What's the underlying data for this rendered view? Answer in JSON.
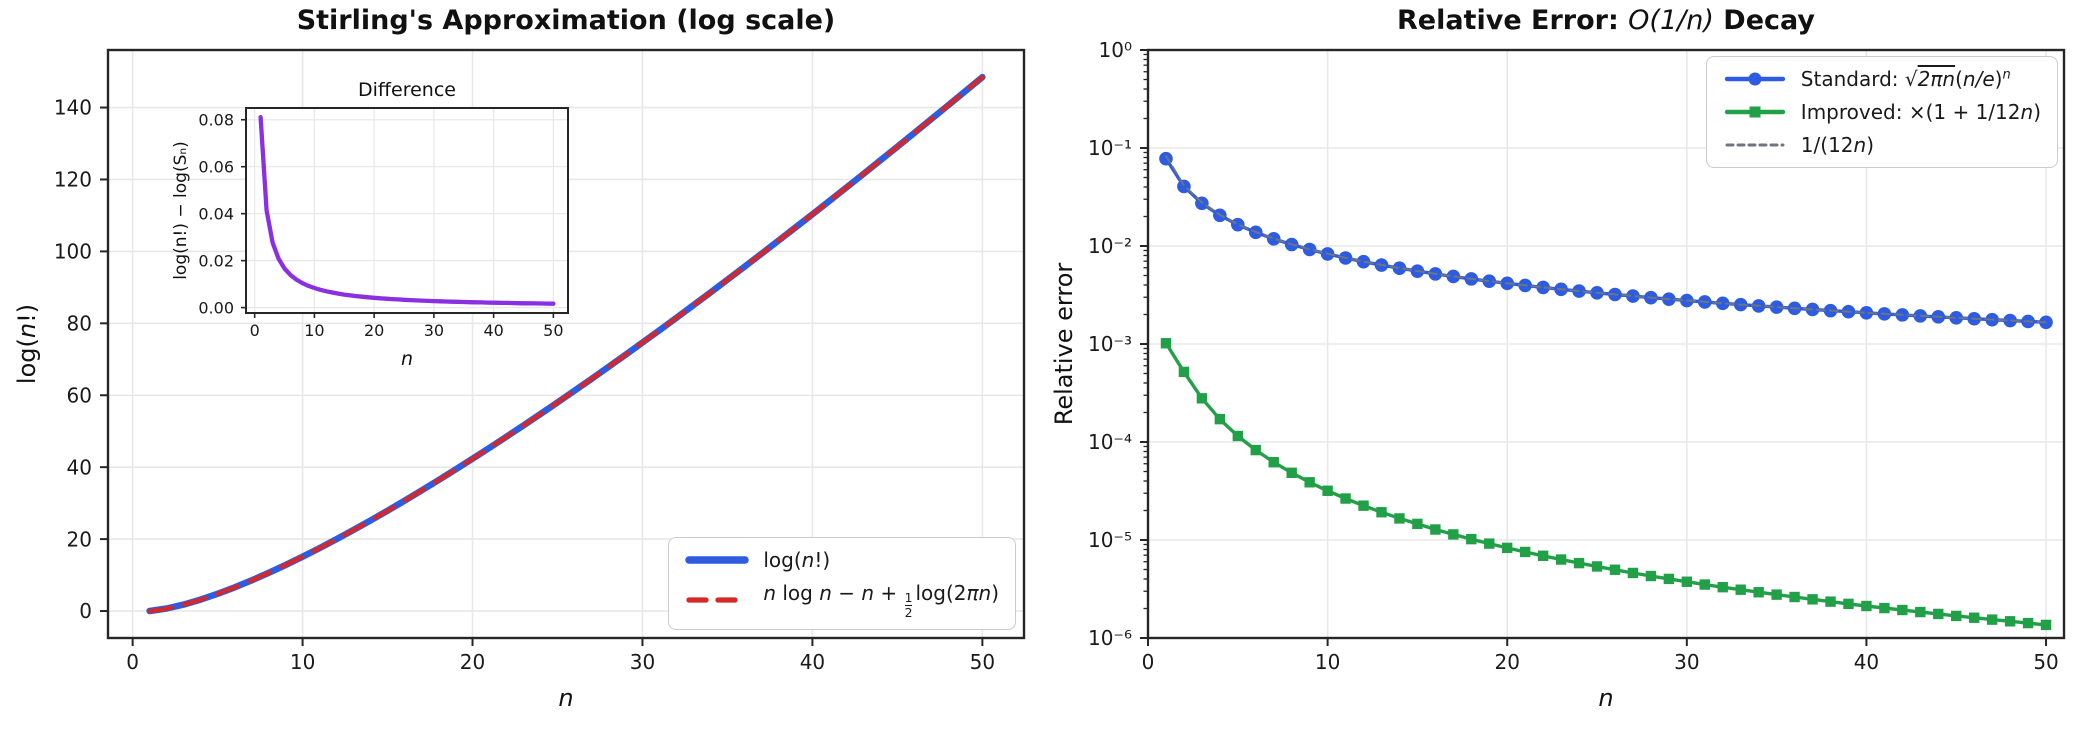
{
  "chart_data": [
    {
      "type": "line",
      "title": "Stirling's Approximation (log scale)",
      "title_parts": [
        {
          "t": "Stirling's Approximation (log scale)"
        }
      ],
      "xlabel": "n",
      "xlabel_parts": [
        {
          "t": "n",
          "i": 1
        }
      ],
      "ylabel": "log(n!)",
      "ylabel_parts": [
        {
          "t": "log("
        },
        {
          "t": "n",
          "i": 1
        },
        {
          "t": "!)"
        }
      ],
      "xlim": [
        -1.45,
        52.45
      ],
      "ylim": [
        -7.5,
        156
      ],
      "grid": true,
      "legend_position": "lower right",
      "xticks": {
        "vals": [
          0,
          10,
          20,
          30,
          40,
          50
        ],
        "labels": [
          "0",
          "10",
          "20",
          "30",
          "40",
          "50"
        ]
      },
      "yticks": {
        "vals": [
          0,
          20,
          40,
          60,
          80,
          100,
          120,
          140
        ],
        "labels": [
          "0",
          "20",
          "40",
          "60",
          "80",
          "100",
          "120",
          "140"
        ]
      },
      "x": [
        1,
        2,
        3,
        4,
        5,
        6,
        7,
        8,
        9,
        10,
        11,
        12,
        13,
        14,
        15,
        16,
        17,
        18,
        19,
        20,
        21,
        22,
        23,
        24,
        25,
        26,
        27,
        28,
        29,
        30,
        31,
        32,
        33,
        34,
        35,
        36,
        37,
        38,
        39,
        40,
        41,
        42,
        43,
        44,
        45,
        46,
        47,
        48,
        49,
        50
      ],
      "series": [
        {
          "label": "log(n!)",
          "label_parts": [
            {
              "t": "log("
            },
            {
              "t": "n",
              "i": 1
            },
            {
              "t": "!)"
            }
          ],
          "color": "#2d5ce0",
          "width": 6.5,
          "style": "solid",
          "y": [
            0.0,
            0.6931,
            1.7918,
            3.1781,
            4.7875,
            6.5793,
            8.5252,
            10.6046,
            12.8018,
            15.1044,
            17.5023,
            19.9872,
            22.5522,
            25.1912,
            27.8993,
            30.6719,
            33.5051,
            36.3954,
            39.3399,
            42.3356,
            45.3801,
            48.4712,
            51.6067,
            54.7847,
            58.0036,
            61.2617,
            64.5575,
            67.8897,
            71.257,
            74.6582,
            78.0922,
            81.558,
            85.0545,
            88.5808,
            92.1362,
            95.7197,
            99.3306,
            102.9682,
            106.6318,
            110.3206,
            114.0342,
            117.7719,
            121.5331,
            125.3173,
            129.1239,
            132.9526,
            136.8027,
            140.6739,
            144.5657,
            148.4778
          ]
        },
        {
          "label": "n log n − n + 1/2 log(2πn)",
          "label_parts": [
            {
              "t": "n",
              "i": 1
            },
            {
              "t": " log "
            },
            {
              "t": "n",
              "i": 1
            },
            {
              "t": " − "
            },
            {
              "t": "n",
              "i": 1
            },
            {
              "t": " + "
            },
            {
              "frac": [
                "1",
                "2"
              ]
            },
            {
              "t": "log(2"
            },
            {
              "t": "πn",
              "i": 1
            },
            {
              "t": ")"
            }
          ],
          "color": "#d62828",
          "width": 4.3,
          "style": "dashed",
          "dash": "22 13",
          "legend_dash": "17 12",
          "y": [
            -0.0811,
            0.6518,
            1.7641,
            3.1573,
            4.7709,
            6.5654,
            8.5133,
            10.5942,
            12.7926,
            15.0961,
            17.4947,
            19.9803,
            22.5458,
            25.1853,
            27.8937,
            30.6667,
            33.5002,
            36.3908,
            39.3355,
            42.3314,
            45.3761,
            48.4674,
            51.6031,
            54.7812,
            58.0003,
            61.2585,
            64.5544,
            67.8867,
            71.2541,
            74.6554,
            78.0895,
            81.5554,
            85.052,
            88.5783,
            92.1338,
            95.7174,
            99.3284,
            102.966,
            106.6297,
            110.3185,
            114.0322,
            117.7699,
            121.5312,
            125.3154,
            129.1221,
            132.9508,
            136.8009,
            140.6722,
            144.564,
            148.4761
          ]
        }
      ],
      "inset": {
        "title": "Difference",
        "xlabel": "n",
        "ylabel": "log(n!) − log(Sₙ)",
        "xlim": [
          -1.45,
          52.45
        ],
        "ylim": [
          -0.0023,
          0.085
        ],
        "grid": true,
        "xticks": {
          "vals": [
            0,
            10,
            20,
            30,
            40,
            50
          ],
          "labels": [
            "0",
            "10",
            "20",
            "30",
            "40",
            "50"
          ]
        },
        "yticks": {
          "vals": [
            0,
            0.02,
            0.04,
            0.06,
            0.08
          ],
          "labels": [
            "0.00",
            "0.02",
            "0.04",
            "0.06",
            "0.08"
          ]
        },
        "series": [
          {
            "label": "log(n!) − log(Sₙ)",
            "color": "#8b2fe2",
            "width": 4.3,
            "style": "solid",
            "y": [
              0.081061,
              0.041341,
              0.027678,
              0.020791,
              0.016645,
              0.013876,
              0.011897,
              0.010411,
              0.009255,
              0.008331,
              0.007574,
              0.006943,
              0.006409,
              0.005951,
              0.005555,
              0.005208,
              0.004901,
              0.004629,
              0.004386,
              0.004166,
              0.003968,
              0.003788,
              0.003623,
              0.003472,
              0.003333,
              0.003205,
              0.003086,
              0.002976,
              0.002874,
              0.002778,
              0.002688,
              0.002604,
              0.002525,
              0.002451,
              0.002381,
              0.002315,
              0.002252,
              0.002193,
              0.002137,
              0.002083,
              0.002032,
              0.001984,
              0.001938,
              0.001894,
              0.001852,
              0.001812,
              0.001773,
              0.001736,
              0.001701,
              0.001667
            ]
          }
        ]
      }
    },
    {
      "type": "line",
      "title": "Relative Error: O(1/n) Decay",
      "title_parts": [
        {
          "t": "Relative Error: "
        },
        {
          "t": "O(1/n)",
          "i": 1
        },
        {
          "t": " Decay"
        }
      ],
      "xlabel": "n",
      "xlabel_parts": [
        {
          "t": "n",
          "i": 1
        }
      ],
      "ylabel": "Relative error",
      "ylabel_parts": [
        {
          "t": "Relative error"
        }
      ],
      "xlim": [
        0,
        51
      ],
      "ylim": [
        1e-06,
        1
      ],
      "yscale": "log",
      "yminor": true,
      "grid": true,
      "legend_position": "upper right",
      "xticks": {
        "vals": [
          0,
          10,
          20,
          30,
          40,
          50
        ],
        "labels": [
          "0",
          "10",
          "20",
          "30",
          "40",
          "50"
        ]
      },
      "yticks": {
        "vals": [
          1,
          0.1,
          0.01,
          0.001,
          0.0001,
          1e-05,
          1e-06
        ],
        "labels": [
          "10⁰",
          "10⁻¹",
          "10⁻²",
          "10⁻³",
          "10⁻⁴",
          "10⁻⁵",
          "10⁻⁶"
        ]
      },
      "x": [
        1,
        2,
        3,
        4,
        5,
        6,
        7,
        8,
        9,
        10,
        11,
        12,
        13,
        14,
        15,
        16,
        17,
        18,
        19,
        20,
        21,
        22,
        23,
        24,
        25,
        26,
        27,
        28,
        29,
        30,
        31,
        32,
        33,
        34,
        35,
        36,
        37,
        38,
        39,
        40,
        41,
        42,
        43,
        44,
        45,
        46,
        47,
        48,
        49,
        50
      ],
      "series": [
        {
          "label": "Standard: √2πn (n/e)^n",
          "label_parts": [
            {
              "t": "Standard: "
            },
            {
              "t": "√"
            },
            {
              "t": "2πn",
              "i": 1,
              "ov": 1
            },
            {
              "t": "("
            },
            {
              "t": "n/e",
              "i": 1
            },
            {
              "t": ")"
            },
            {
              "t": "n",
              "i": 1,
              "sup": 1
            }
          ],
          "color": "#2d5ce0",
          "width": 3.4,
          "style": "solid",
          "marker": "circle",
          "msize": 6.8,
          "y": [
            0.077863,
            0.040498,
            0.027298,
            0.020576,
            0.016507,
            0.01378,
            0.011826,
            0.010357,
            0.009213,
            0.008296,
            0.007545,
            0.006919,
            0.006389,
            0.005934,
            0.005539,
            0.005194,
            0.004889,
            0.004618,
            0.004376,
            0.004158,
            0.00396,
            0.003781,
            0.003616,
            0.003466,
            0.003328,
            0.0032,
            0.003081,
            0.002972,
            0.002869,
            0.002774,
            0.002685,
            0.002601,
            0.002522,
            0.002448,
            0.002378,
            0.002312,
            0.00225,
            0.00219,
            0.002135,
            0.002081,
            0.00203,
            0.001982,
            0.001936,
            0.001892,
            0.00185,
            0.00181,
            0.001771,
            0.001735,
            0.001699,
            0.001665
          ]
        },
        {
          "label": "Improved: ×(1 + 1/12n)",
          "label_parts": [
            {
              "t": "Improved: ×(1 + 1/12"
            },
            {
              "t": "n",
              "i": 1
            },
            {
              "t": ")"
            }
          ],
          "color": "#22a048",
          "width": 3.4,
          "style": "solid",
          "marker": "square",
          "msize": 5.2,
          "y": [
            0.001018,
            0.000519,
            0.000279,
            0.000171,
            0.0001151,
            8.27e-05,
            6.22e-05,
            4.85e-05,
            3.88e-05,
            3.18e-05,
            2.65e-05,
            2.24e-05,
            1.92e-05,
            1.66e-05,
            1.46e-05,
            1.28e-05,
            1.14e-05,
            1.02e-05,
            9.19e-06,
            8.31e-06,
            7.55e-06,
            6.9e-06,
            6.32e-06,
            5.81e-06,
            5.37e-06,
            4.97e-06,
            4.61e-06,
            4.29e-06,
            4.01e-06,
            3.75e-06,
            3.51e-06,
            3.3e-06,
            3.11e-06,
            2.93e-06,
            2.77e-06,
            2.62e-06,
            2.48e-06,
            2.35e-06,
            2.23e-06,
            2.12e-06,
            2.02e-06,
            1.93e-06,
            1.84e-06,
            1.76e-06,
            1.68e-06,
            1.61e-06,
            1.54e-06,
            1.48e-06,
            1.42e-06,
            1.36e-06
          ]
        },
        {
          "label": "1/(12n)",
          "label_parts": [
            {
              "t": "1/(12"
            },
            {
              "t": "n",
              "i": 1
            },
            {
              "t": ")"
            }
          ],
          "color": "#6e7480",
          "width": 2,
          "style": "dashed",
          "dash": "8 5",
          "legend_dash": "6 5",
          "y": [
            0.083333,
            0.041667,
            0.027778,
            0.020833,
            0.016667,
            0.013889,
            0.011905,
            0.010417,
            0.009259,
            0.008333,
            0.007576,
            0.006944,
            0.00641,
            0.005952,
            0.005556,
            0.005208,
            0.004902,
            0.00463,
            0.004386,
            0.004167,
            0.003968,
            0.003788,
            0.003623,
            0.003472,
            0.003333,
            0.003205,
            0.003086,
            0.002976,
            0.002874,
            0.002778,
            0.002688,
            0.002604,
            0.002525,
            0.002451,
            0.002381,
            0.002315,
            0.002252,
            0.002193,
            0.002137,
            0.002083,
            0.002033,
            0.001984,
            0.001938,
            0.001894,
            0.001852,
            0.001812,
            0.001773,
            0.001736,
            0.001701,
            0.001667
          ]
        }
      ]
    }
  ]
}
